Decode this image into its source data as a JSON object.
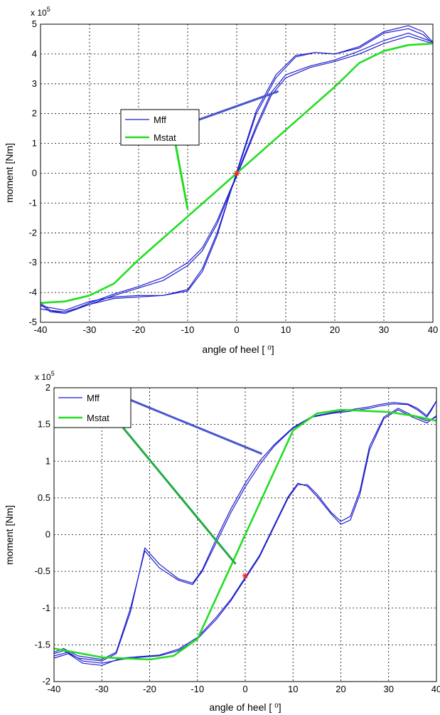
{
  "colors": {
    "mff": "#1f1fcc",
    "mstat": "#22dd22",
    "marker": "#ff2222",
    "grid": "#000000"
  },
  "chart_data": [
    {
      "type": "line",
      "title": "",
      "xlabel": "angle of heel  [ ⁰]",
      "ylabel": "moment [Nm]",
      "y_multiplier": "x 10",
      "y_exponent": "5",
      "xlim": [
        -40,
        40
      ],
      "ylim": [
        -5,
        5
      ],
      "xticks": [
        "-40",
        "-30",
        "-20",
        "-10",
        "0",
        "10",
        "20",
        "30",
        "40"
      ],
      "yticks": [
        "-5",
        "-4",
        "-3",
        "-2",
        "-1",
        "0",
        "1",
        "2",
        "3",
        "4",
        "5"
      ],
      "grid": true,
      "legend": {
        "placement": "upper-left (with leader lines)",
        "entries": [
          "Mff",
          "Mstat"
        ]
      },
      "series": [
        {
          "name": "Mff",
          "color": "#1f1fcc",
          "loops": [
            {
              "x": [
                -40,
                -35,
                -30,
                -25,
                -20,
                -15,
                -10,
                -7,
                -4,
                0,
                4,
                8,
                12,
                16,
                20,
                25,
                30,
                35,
                38,
                40
              ],
              "y": [
                -4.45,
                -4.6,
                -4.3,
                -4.15,
                -4.1,
                -4.1,
                -3.9,
                -3.2,
                -2.0,
                0,
                2.0,
                3.2,
                3.9,
                4.05,
                4.0,
                4.2,
                4.7,
                4.85,
                4.65,
                4.35
              ]
            },
            {
              "x": [
                40,
                35,
                30,
                25,
                20,
                15,
                10,
                7,
                4,
                0,
                -4,
                -7,
                -10,
                -15,
                -20,
                -25,
                -30,
                -35,
                -38,
                -40
              ],
              "y": [
                4.35,
                4.6,
                4.35,
                4.0,
                3.75,
                3.55,
                3.2,
                2.6,
                1.5,
                -0.1,
                -1.7,
                -2.6,
                -3.1,
                -3.6,
                -3.85,
                -4.1,
                -4.4,
                -4.65,
                -4.6,
                -4.35
              ]
            },
            {
              "x": [
                -40,
                -35,
                -30,
                -25,
                -20,
                -15,
                -10,
                -7,
                -4,
                0,
                4,
                8,
                12,
                16,
                20,
                25,
                30,
                35,
                38,
                40
              ],
              "y": [
                -4.55,
                -4.7,
                -4.4,
                -4.2,
                -4.15,
                -4.1,
                -3.95,
                -3.3,
                -2.1,
                0.05,
                2.1,
                3.3,
                3.95,
                4.05,
                4.0,
                4.25,
                4.75,
                4.95,
                4.75,
                4.4
              ]
            },
            {
              "x": [
                40,
                35,
                30,
                25,
                20,
                15,
                10,
                7,
                4,
                0,
                -4,
                -7,
                -10,
                -15,
                -20,
                -25,
                -30,
                -35,
                -38,
                -40
              ],
              "y": [
                4.4,
                4.7,
                4.45,
                4.1,
                3.8,
                3.6,
                3.3,
                2.7,
                1.6,
                -0.05,
                -1.6,
                -2.5,
                -3.0,
                -3.5,
                -3.8,
                -4.05,
                -4.35,
                -4.7,
                -4.65,
                -4.4
              ]
            }
          ]
        },
        {
          "name": "Mstat",
          "color": "#22dd22",
          "x": [
            -40,
            -35,
            -30,
            -25,
            -20,
            -10,
            0,
            10,
            20,
            25,
            30,
            35,
            40
          ],
          "y": [
            -4.35,
            -4.3,
            -4.1,
            -3.7,
            -2.9,
            -1.45,
            0,
            1.45,
            2.9,
            3.7,
            4.1,
            4.3,
            4.35
          ]
        }
      ],
      "marker": {
        "x": 0,
        "y": 0
      },
      "annotations": [
        {
          "label": "Mff",
          "from": [
            -8.5,
            1.75
          ],
          "to": [
            8.5,
            2.75
          ]
        },
        {
          "label": "Mstat",
          "from": [
            -12.5,
            1.0
          ],
          "to": [
            -10,
            -1.2
          ]
        }
      ]
    },
    {
      "type": "line",
      "title": "",
      "xlabel": "angle of heel  [ ⁰]",
      "ylabel": "moment [Nm]",
      "y_multiplier": "x 10",
      "y_exponent": "5",
      "xlim": [
        -40,
        40
      ],
      "ylim": [
        -2,
        2
      ],
      "xticks": [
        "-40",
        "-30",
        "-20",
        "-10",
        "0",
        "10",
        "20",
        "30",
        "40"
      ],
      "yticks": [
        "-2",
        "-1.5",
        "-1",
        "-0.5",
        "0",
        "0.5",
        "1",
        "1.5",
        "2"
      ],
      "grid": true,
      "legend": {
        "placement": "upper-left (with leader lines)",
        "entries": [
          "Mff",
          "Mstat"
        ]
      },
      "series": [
        {
          "name": "Mff",
          "color": "#1f1fcc",
          "loops": [
            {
              "x": [
                -40,
                -38,
                -35,
                -30,
                -27,
                -24,
                -21,
                -18,
                -14,
                -11,
                -9,
                -6,
                -3,
                0,
                3,
                6,
                10,
                14,
                18,
                22,
                26,
                28,
                31,
                34,
                36,
                38,
                39,
                40
              ],
              "y": [
                -1.6,
                -1.55,
                -1.65,
                -1.7,
                -1.6,
                -1.0,
                -0.22,
                -0.45,
                -0.62,
                -0.68,
                -0.5,
                -0.1,
                0.3,
                0.65,
                0.95,
                1.2,
                1.45,
                1.6,
                1.65,
                1.68,
                1.72,
                1.75,
                1.78,
                1.77,
                1.7,
                1.6,
                1.7,
                1.82
              ]
            },
            {
              "x": [
                40,
                38,
                35,
                32,
                29,
                26,
                24,
                22,
                20,
                18,
                15,
                13,
                11,
                9,
                6,
                3,
                0,
                -3,
                -6,
                -10,
                -14,
                -18,
                -22,
                -26,
                -30,
                -34,
                -37,
                -40
              ],
              "y": [
                1.6,
                1.55,
                1.62,
                1.72,
                1.6,
                1.2,
                0.6,
                0.25,
                0.18,
                0.3,
                0.55,
                0.68,
                0.68,
                0.5,
                0.1,
                -0.3,
                -0.6,
                -0.9,
                -1.15,
                -1.42,
                -1.58,
                -1.65,
                -1.67,
                -1.7,
                -1.75,
                -1.72,
                -1.6,
                -1.65
              ]
            },
            {
              "x": [
                -40,
                -38,
                -35,
                -30,
                -27,
                -24,
                -21,
                -18,
                -14,
                -11,
                -9,
                -6,
                -3,
                0,
                3,
                6,
                10,
                14,
                18,
                22,
                26,
                28,
                31,
                34,
                36,
                38,
                39,
                40
              ],
              "y": [
                -1.62,
                -1.58,
                -1.68,
                -1.72,
                -1.62,
                -1.05,
                -0.18,
                -0.4,
                -0.6,
                -0.66,
                -0.48,
                -0.05,
                0.35,
                0.7,
                1.0,
                1.22,
                1.46,
                1.61,
                1.66,
                1.7,
                1.74,
                1.77,
                1.8,
                1.78,
                1.72,
                1.62,
                1.72,
                1.82
              ]
            },
            {
              "x": [
                40,
                38,
                35,
                32,
                29,
                26,
                24,
                22,
                20,
                18,
                15,
                13,
                11,
                9,
                6,
                3,
                0,
                -3,
                -6,
                -10,
                -14,
                -18,
                -22,
                -26,
                -30,
                -34,
                -37,
                -40
              ],
              "y": [
                1.62,
                1.52,
                1.6,
                1.7,
                1.58,
                1.15,
                0.55,
                0.2,
                0.14,
                0.28,
                0.52,
                0.66,
                0.7,
                0.52,
                0.12,
                -0.28,
                -0.58,
                -0.88,
                -1.12,
                -1.4,
                -1.56,
                -1.64,
                -1.66,
                -1.68,
                -1.78,
                -1.75,
                -1.62,
                -1.68
              ]
            }
          ]
        },
        {
          "name": "Mstat",
          "color": "#22dd22",
          "x": [
            -40,
            -30,
            -20,
            -15,
            -10,
            0,
            10,
            15,
            20,
            30,
            35,
            40
          ],
          "y": [
            -1.55,
            -1.67,
            -1.7,
            -1.65,
            -1.42,
            0,
            1.42,
            1.65,
            1.7,
            1.67,
            1.62,
            1.55
          ]
        }
      ],
      "marker": {
        "x": 0,
        "y": -0.56
      },
      "annotations": [
        {
          "label": "Mff",
          "from": [
            -26.5,
            1.9
          ],
          "to": [
            3.5,
            1.1
          ]
        },
        {
          "label": "Mstat",
          "from": [
            -27,
            1.57
          ],
          "to": [
            -2,
            -0.4
          ]
        }
      ]
    }
  ]
}
